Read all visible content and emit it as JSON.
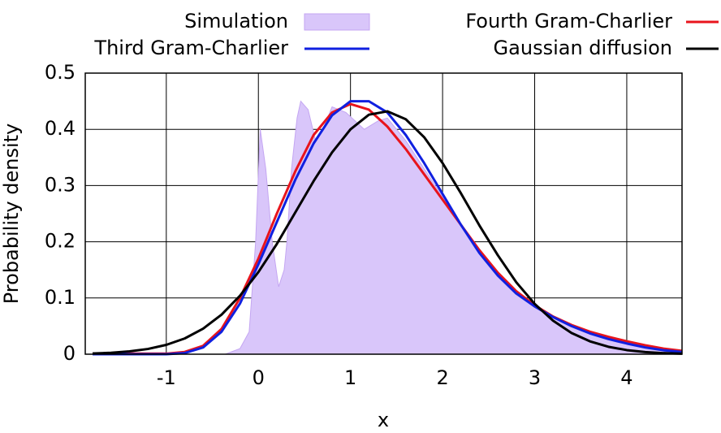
{
  "chart_data": {
    "type": "line",
    "xlabel": "x",
    "ylabel": "Probability density",
    "xlim": [
      -1.88,
      4.6
    ],
    "ylim": [
      0,
      0.5
    ],
    "xticks": [
      -1,
      0,
      1,
      2,
      3,
      4
    ],
    "yticks": [
      0,
      0.1,
      0.2,
      0.3,
      0.4,
      0.5
    ],
    "grid": true,
    "legend": "top",
    "x": [
      -1.8,
      -1.6,
      -1.4,
      -1.2,
      -1.0,
      -0.8,
      -0.6,
      -0.4,
      -0.2,
      0,
      0.2,
      0.4,
      0.6,
      0.8,
      1.0,
      1.2,
      1.4,
      1.6,
      1.8,
      2.0,
      2.2,
      2.4,
      2.6,
      2.8,
      3.0,
      3.2,
      3.4,
      3.6,
      3.8,
      4.0,
      4.2,
      4.4,
      4.6
    ],
    "series": [
      {
        "name": "Simulation",
        "color": "#d9c6fa",
        "edge": "#c4a6f2",
        "style": "area",
        "x": [
          -0.36,
          -0.2,
          -0.1,
          -0.03,
          0.02,
          0.08,
          0.15,
          0.22,
          0.28,
          0.31,
          0.36,
          0.42,
          0.46,
          0.54,
          0.62,
          0.7,
          0.8,
          0.95,
          1.15,
          1.3,
          1.4,
          1.6,
          1.8,
          2.0,
          2.2,
          2.4,
          2.6,
          2.8,
          3.0,
          3.2,
          3.4,
          3.6,
          3.8,
          4.0,
          4.2,
          4.4,
          4.6
        ],
        "values": [
          0,
          0.01,
          0.04,
          0.2,
          0.4,
          0.33,
          0.2,
          0.12,
          0.15,
          0.2,
          0.33,
          0.42,
          0.45,
          0.435,
          0.38,
          0.4,
          0.44,
          0.43,
          0.4,
          0.415,
          0.42,
          0.38,
          0.33,
          0.28,
          0.23,
          0.185,
          0.145,
          0.11,
          0.087,
          0.067,
          0.052,
          0.04,
          0.03,
          0.022,
          0.015,
          0.01,
          0.006
        ]
      },
      {
        "name": "Fourth Gram-Charlier",
        "color": "#e8141c",
        "values": [
          0.001,
          0.001,
          0.001,
          0.001,
          0.001,
          0.004,
          0.015,
          0.045,
          0.1,
          0.17,
          0.25,
          0.325,
          0.39,
          0.43,
          0.445,
          0.435,
          0.405,
          0.365,
          0.32,
          0.275,
          0.23,
          0.185,
          0.145,
          0.112,
          0.087,
          0.067,
          0.052,
          0.04,
          0.031,
          0.023,
          0.016,
          0.01,
          0.006
        ]
      },
      {
        "name": "Third Gram-Charlier",
        "color": "#1020e0",
        "values": [
          0,
          0,
          0,
          0,
          0,
          0.002,
          0.012,
          0.04,
          0.09,
          0.16,
          0.235,
          0.31,
          0.375,
          0.425,
          0.45,
          0.45,
          0.43,
          0.39,
          0.34,
          0.285,
          0.23,
          0.18,
          0.14,
          0.108,
          0.085,
          0.066,
          0.05,
          0.037,
          0.027,
          0.019,
          0.012,
          0.007,
          0.004
        ]
      },
      {
        "name": "Gaussian diffusion",
        "color": "#000000",
        "values": [
          0.0012,
          0.0026,
          0.005,
          0.0093,
          0.0166,
          0.028,
          0.0455,
          0.0704,
          0.104,
          0.146,
          0.196,
          0.252,
          0.308,
          0.359,
          0.4,
          0.426,
          0.432,
          0.418,
          0.386,
          0.34,
          0.286,
          0.229,
          0.176,
          0.128,
          0.0895,
          0.0596,
          0.0378,
          0.0229,
          0.0132,
          0.0073,
          0.0038,
          0.0019,
          0.0009
        ]
      }
    ]
  }
}
